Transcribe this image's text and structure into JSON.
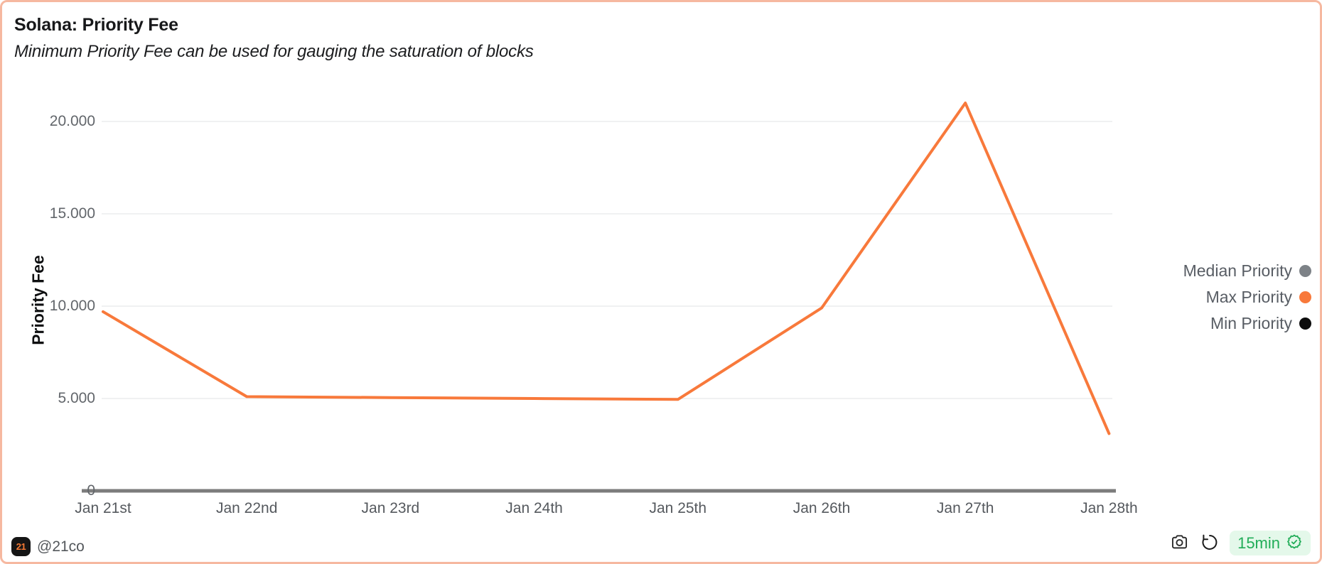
{
  "header": {
    "title": "Solana: Priority Fee",
    "subtitle": "Minimum Priority Fee can be used for gauging the saturation of blocks"
  },
  "chart_data": {
    "type": "line",
    "title": "Solana: Priority Fee",
    "xlabel": "",
    "ylabel": "Priority Fee",
    "categories": [
      "Jan 21st",
      "Jan 22nd",
      "Jan 23rd",
      "Jan 24th",
      "Jan 25th",
      "Jan 26th",
      "Jan 27th",
      "Jan 28th"
    ],
    "series": [
      {
        "name": "Median Priority",
        "color": "#7d8287",
        "visible": false,
        "values": null
      },
      {
        "name": "Max Priority",
        "color": "#f8793b",
        "visible": true,
        "values": [
          9700,
          5100,
          5050,
          5000,
          4950,
          9900,
          21000,
          3100
        ]
      },
      {
        "name": "Min Priority",
        "color": "#0d0d0d",
        "visible": false,
        "values": null
      }
    ],
    "y_ticks": [
      {
        "value": 20000,
        "label": "20.000"
      },
      {
        "value": 15000,
        "label": "15.000"
      },
      {
        "value": 10000,
        "label": "10.000"
      },
      {
        "value": 5000,
        "label": "5.000"
      },
      {
        "value": 0,
        "label": "0"
      }
    ],
    "ylim": [
      0,
      22500
    ],
    "grid": true,
    "legend_position": "right"
  },
  "footer": {
    "logo_text": "21",
    "handle": "@21co",
    "refresh_badge": "15min"
  },
  "icons": {
    "camera": "camera-icon",
    "undo": "undo-refresh-icon",
    "verified": "verified-seal-icon"
  },
  "colors": {
    "card_border": "#f6b8a0",
    "accent_orange": "#f8793b",
    "grid": "#f0f1f2",
    "axis_baseline": "#7c7c7c",
    "badge_green": "#21ad58",
    "badge_bg": "#e4f8ea"
  }
}
